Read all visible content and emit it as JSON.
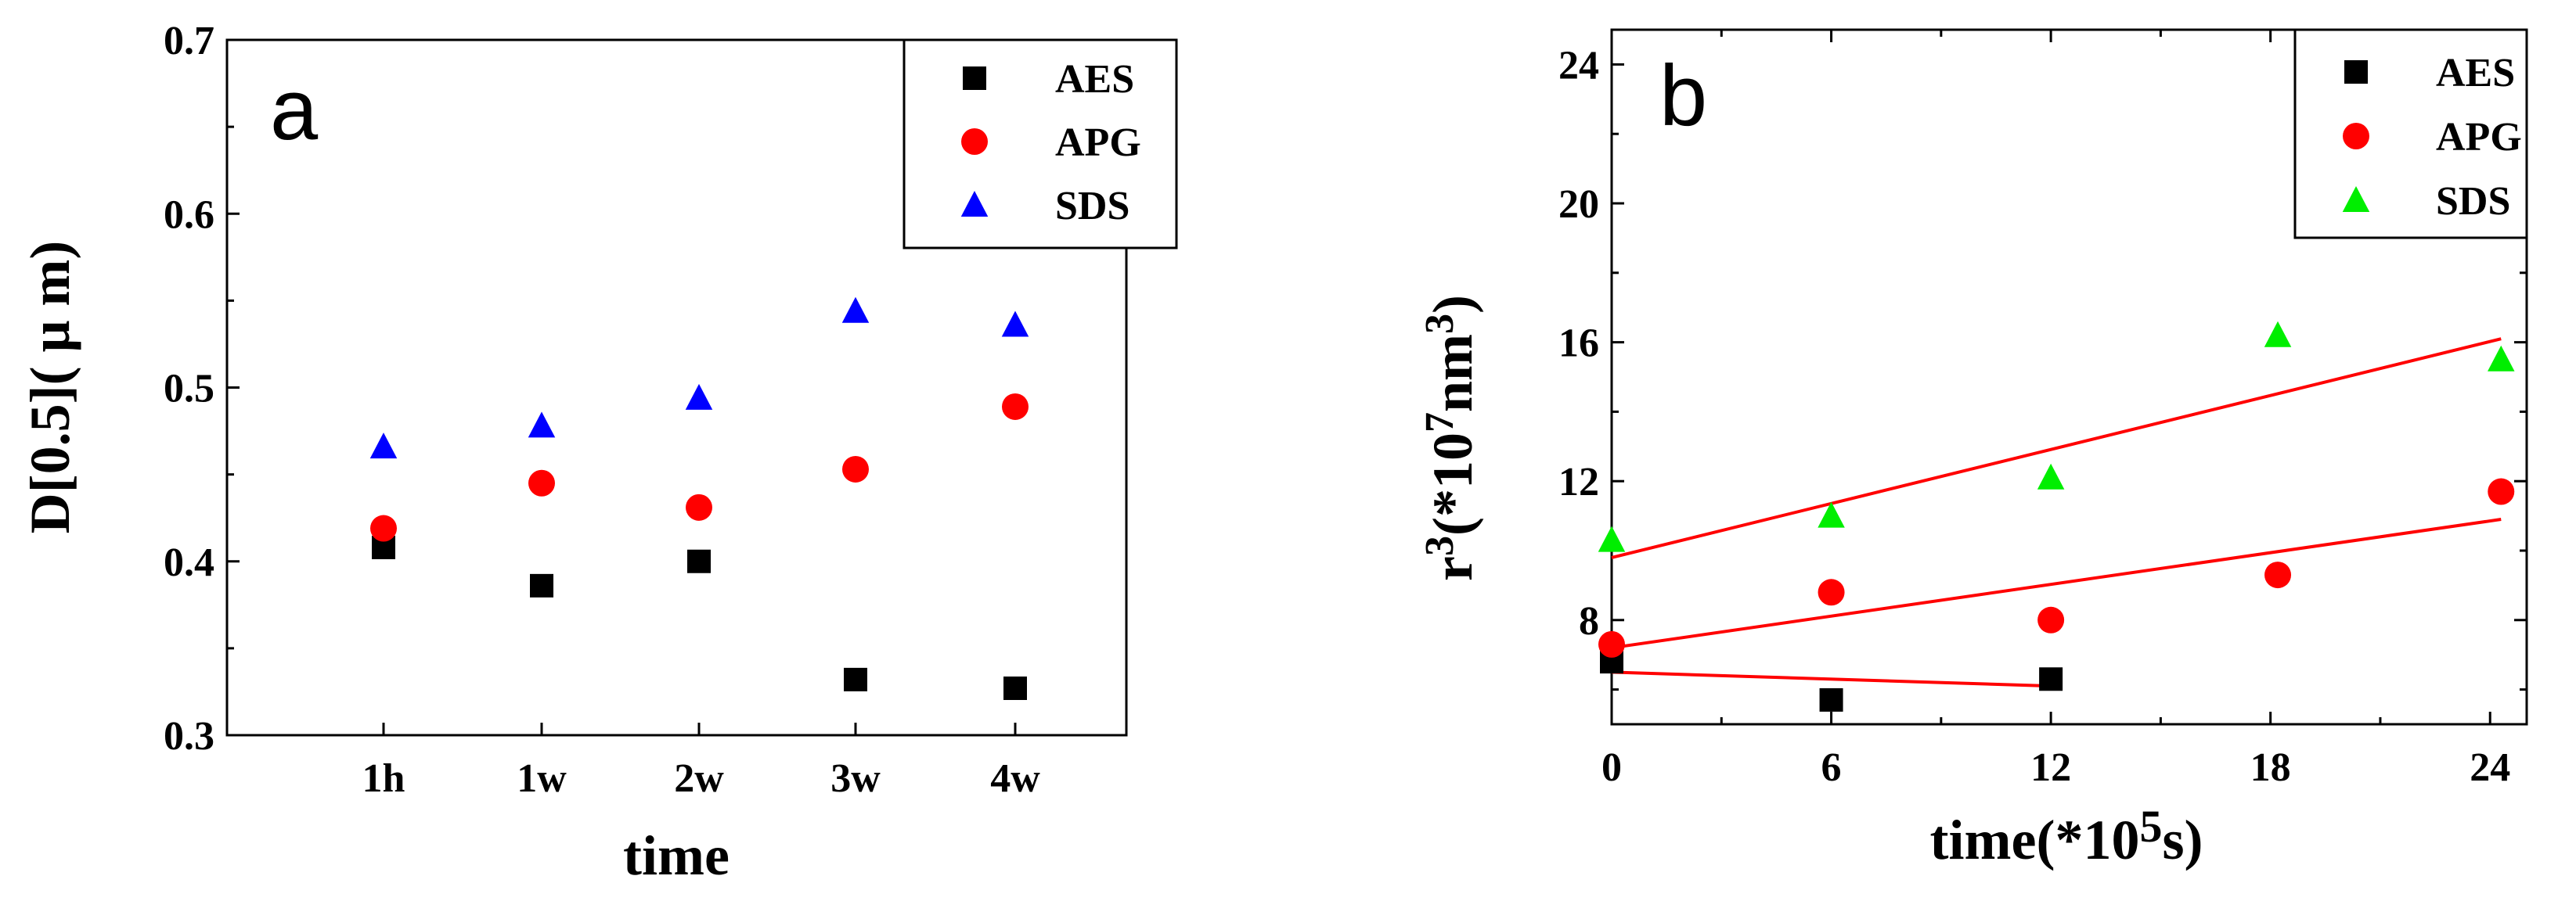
{
  "colors": {
    "AES": "#000000",
    "APG": "#ff0000",
    "SDS_a": "#0000ff",
    "SDS_b": "#00ee00",
    "fit": "#ff0000"
  },
  "chart_data": [
    {
      "type": "scatter",
      "panel_label": "a",
      "xlabel": "time",
      "ylabel": "D[0.5]( μ m)",
      "categories": [
        "1h",
        "1w",
        "2w",
        "3w",
        "4w"
      ],
      "ylim": [
        0.3,
        0.7
      ],
      "yticks": [
        "0.3",
        "0.4",
        "0.5",
        "0.6",
        "0.7"
      ],
      "legend_position": "top-right",
      "series": [
        {
          "name": "AES",
          "marker": "square",
          "values": [
            0.408,
            0.386,
            0.4,
            0.332,
            0.327
          ]
        },
        {
          "name": "APG",
          "marker": "circle",
          "values": [
            0.419,
            0.445,
            0.431,
            0.453,
            0.489
          ]
        },
        {
          "name": "SDS",
          "marker": "triangle",
          "values": [
            0.466,
            0.478,
            0.494,
            0.544,
            0.536
          ]
        }
      ]
    },
    {
      "type": "scatter",
      "panel_label": "b",
      "xlabel": {
        "main": "time(*10",
        "sup": "5",
        "end": "s)"
      },
      "ylabel": {
        "r": "r",
        "r_sup": "3",
        "mid": "(*10",
        "mid_sup": "7",
        "nm": "nm",
        "nm_sup": "3",
        "end": ")"
      },
      "xlim": [
        0,
        25
      ],
      "ylim": [
        5,
        25
      ],
      "xticks": [
        "0",
        "6",
        "12",
        "18",
        "24"
      ],
      "yticks": [
        "8",
        "12",
        "16",
        "20",
        "24"
      ],
      "legend_position": "top-right",
      "series": [
        {
          "name": "AES",
          "marker": "square",
          "x": [
            0,
            6,
            12
          ],
          "y": [
            6.8,
            5.7,
            6.3
          ],
          "fit": {
            "x": [
              0,
              12
            ],
            "y": [
              6.5,
              6.1
            ]
          }
        },
        {
          "name": "APG",
          "marker": "circle",
          "x": [
            0,
            6,
            12,
            18.2,
            24.3
          ],
          "y": [
            7.3,
            8.8,
            8.0,
            9.3,
            11.7
          ],
          "fit": {
            "x": [
              0,
              24.3
            ],
            "y": [
              7.2,
              10.9
            ]
          }
        },
        {
          "name": "SDS",
          "marker": "triangle",
          "x": [
            0,
            6,
            12,
            18.2,
            24.3
          ],
          "y": [
            10.3,
            11.0,
            12.1,
            16.2,
            15.5
          ],
          "fit": {
            "x": [
              0,
              24.3
            ],
            "y": [
              9.8,
              16.1
            ]
          }
        }
      ]
    }
  ]
}
